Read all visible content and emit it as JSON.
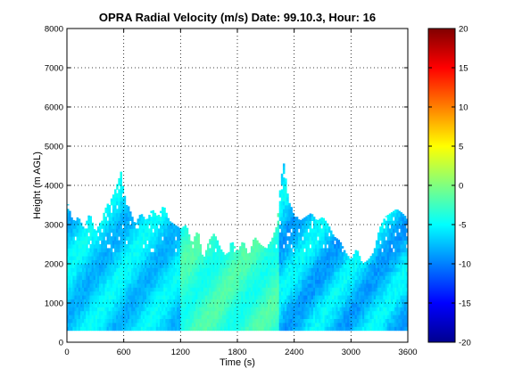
{
  "chart_data": {
    "type": "heatmap",
    "title": "OPRA Radial Velocity (m/s)  Date: 99.10.3, Hour: 16",
    "xlabel": "Time (s)",
    "ylabel": "Height (m AGL)",
    "xlim": [
      0,
      3600
    ],
    "ylim": [
      0,
      8000
    ],
    "xticks": [
      0,
      600,
      1200,
      1800,
      2400,
      3000,
      3600
    ],
    "xtick_labels": [
      "0",
      "600",
      "1200",
      "1800",
      "2400",
      "3000",
      "3600"
    ],
    "yticks": [
      0,
      1000,
      2000,
      3000,
      4000,
      5000,
      6000,
      7000,
      8000
    ],
    "ytick_labels": [
      "0",
      "1000",
      "2000",
      "3000",
      "4000",
      "5000",
      "6000",
      "7000",
      "8000"
    ],
    "grid": true,
    "colorbar": {
      "range": [
        -20,
        20
      ],
      "ticks": [
        -20,
        -15,
        -10,
        -5,
        0,
        5,
        10,
        15,
        20
      ],
      "tick_labels": [
        "-20",
        "-15",
        "-10",
        "-5",
        "0",
        "5",
        "10",
        "15",
        "20"
      ],
      "colormap": "jet"
    },
    "data_floor_m": 300,
    "echo_top_profile": [
      {
        "t": 0,
        "top": 3600
      },
      {
        "t": 60,
        "top": 3100
      },
      {
        "t": 120,
        "top": 3200
      },
      {
        "t": 180,
        "top": 2900
      },
      {
        "t": 240,
        "top": 3300
      },
      {
        "t": 300,
        "top": 2800
      },
      {
        "t": 360,
        "top": 3100
      },
      {
        "t": 420,
        "top": 3500
      },
      {
        "t": 480,
        "top": 3700
      },
      {
        "t": 540,
        "top": 4100
      },
      {
        "t": 570,
        "top": 4350
      },
      {
        "t": 600,
        "top": 3800
      },
      {
        "t": 660,
        "top": 3400
      },
      {
        "t": 720,
        "top": 3000
      },
      {
        "t": 780,
        "top": 3300
      },
      {
        "t": 840,
        "top": 3100
      },
      {
        "t": 900,
        "top": 3400
      },
      {
        "t": 960,
        "top": 3200
      },
      {
        "t": 1020,
        "top": 3500
      },
      {
        "t": 1080,
        "top": 3100
      },
      {
        "t": 1140,
        "top": 3000
      },
      {
        "t": 1200,
        "top": 2900
      },
      {
        "t": 1260,
        "top": 3000
      },
      {
        "t": 1320,
        "top": 2500
      },
      {
        "t": 1380,
        "top": 2900
      },
      {
        "t": 1440,
        "top": 2100
      },
      {
        "t": 1500,
        "top": 2600
      },
      {
        "t": 1560,
        "top": 2800
      },
      {
        "t": 1620,
        "top": 2400
      },
      {
        "t": 1680,
        "top": 2200
      },
      {
        "t": 1740,
        "top": 2600
      },
      {
        "t": 1800,
        "top": 2300
      },
      {
        "t": 1860,
        "top": 2600
      },
      {
        "t": 1920,
        "top": 2200
      },
      {
        "t": 1980,
        "top": 2700
      },
      {
        "t": 2040,
        "top": 2500
      },
      {
        "t": 2100,
        "top": 2400
      },
      {
        "t": 2160,
        "top": 2600
      },
      {
        "t": 2220,
        "top": 3000
      },
      {
        "t": 2280,
        "top": 4750
      },
      {
        "t": 2340,
        "top": 3600
      },
      {
        "t": 2400,
        "top": 3300
      },
      {
        "t": 2460,
        "top": 3100
      },
      {
        "t": 2520,
        "top": 3200
      },
      {
        "t": 2580,
        "top": 3300
      },
      {
        "t": 2640,
        "top": 3100
      },
      {
        "t": 2700,
        "top": 3200
      },
      {
        "t": 2760,
        "top": 3000
      },
      {
        "t": 2820,
        "top": 2700
      },
      {
        "t": 2880,
        "top": 2600
      },
      {
        "t": 2940,
        "top": 2300
      },
      {
        "t": 3000,
        "top": 2100
      },
      {
        "t": 3060,
        "top": 2400
      },
      {
        "t": 3120,
        "top": 2000
      },
      {
        "t": 3180,
        "top": 2100
      },
      {
        "t": 3240,
        "top": 2300
      },
      {
        "t": 3300,
        "top": 2900
      },
      {
        "t": 3360,
        "top": 3200
      },
      {
        "t": 3420,
        "top": 3300
      },
      {
        "t": 3480,
        "top": 3400
      },
      {
        "t": 3540,
        "top": 3300
      },
      {
        "t": 3580,
        "top": 3200
      },
      {
        "t": 3600,
        "top": 3100
      }
    ],
    "velocity_bands": [
      {
        "t_start": 0,
        "t_end": 1200,
        "v_min": -9,
        "v_max": -4
      },
      {
        "t_start": 1200,
        "t_end": 2250,
        "v_min": -5,
        "v_max": -1
      },
      {
        "t_start": 2250,
        "t_end": 3600,
        "v_min": -10,
        "v_max": -4
      }
    ]
  }
}
